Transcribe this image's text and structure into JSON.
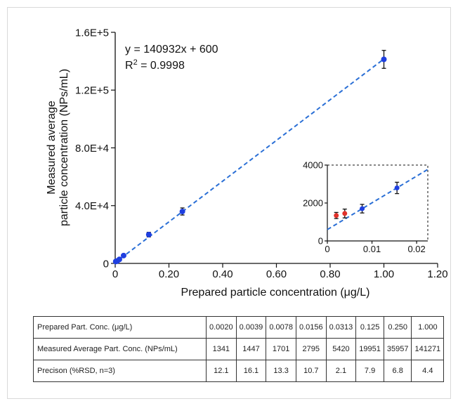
{
  "chart_data": [
    {
      "type": "scatter",
      "xlabel": "Prepared particle concentration (μg/L)",
      "ylabel_line1": "Measured average",
      "ylabel_line2": "particle concentration (NPs/mL)",
      "xlim": [
        0,
        1.2
      ],
      "ylim": [
        0,
        160000
      ],
      "x_ticks": [
        0,
        0.2,
        0.4,
        0.6,
        0.8,
        1.0,
        1.2
      ],
      "x_tick_labels": [
        "0",
        "0.20",
        "0.40",
        "0.60",
        "0.80",
        "1.00",
        "1.20"
      ],
      "y_ticks": [
        0,
        40000,
        80000,
        120000,
        160000
      ],
      "y_tick_labels": [
        "0",
        "4.0E+4",
        "8.0E+4",
        "1.2E+5",
        "1.6E+5"
      ],
      "equation": "y = 140932x + 600",
      "r2_label": "R",
      "r2_sup": "2",
      "r2_value": " = 0.9998",
      "fit": {
        "slope": 140932,
        "intercept": 600,
        "x_range": [
          0,
          1.0
        ]
      },
      "points": [
        {
          "x": 0.002,
          "y": 1341,
          "err": 162,
          "color": "#1f3fe0"
        },
        {
          "x": 0.0039,
          "y": 1447,
          "err": 232,
          "color": "#1f3fe0"
        },
        {
          "x": 0.0078,
          "y": 1701,
          "err": 226,
          "color": "#1f3fe0"
        },
        {
          "x": 0.0156,
          "y": 2795,
          "err": 299,
          "color": "#1f3fe0"
        },
        {
          "x": 0.0313,
          "y": 5420,
          "err": 114,
          "color": "#1f3fe0"
        },
        {
          "x": 0.125,
          "y": 19951,
          "err": 1576,
          "color": "#1f3fe0"
        },
        {
          "x": 0.25,
          "y": 35957,
          "err": 2445,
          "color": "#1f3fe0"
        },
        {
          "x": 1.0,
          "y": 141271,
          "err": 6216,
          "color": "#1f3fe0"
        }
      ],
      "fit_color": "#2a6fd6",
      "grid": false
    },
    {
      "type": "scatter",
      "role": "inset",
      "xlim": [
        0,
        0.0225
      ],
      "ylim": [
        0,
        4000
      ],
      "x_ticks": [
        0,
        0.01,
        0.02
      ],
      "x_tick_labels": [
        "0",
        "0.01",
        "0.02"
      ],
      "y_ticks": [
        0,
        2000,
        4000
      ],
      "y_tick_labels": [
        "0",
        "2000",
        "4000"
      ],
      "fit": {
        "slope": 140932,
        "intercept": 600,
        "x_range": [
          0,
          0.0225
        ]
      },
      "points": [
        {
          "x": 0.002,
          "y": 1341,
          "err": 162,
          "color": "#e0312a"
        },
        {
          "x": 0.0039,
          "y": 1447,
          "err": 232,
          "color": "#e0312a"
        },
        {
          "x": 0.0078,
          "y": 1701,
          "err": 226,
          "color": "#1f3fe0"
        },
        {
          "x": 0.0156,
          "y": 2795,
          "err": 299,
          "color": "#1f3fe0"
        }
      ]
    }
  ],
  "table": {
    "rows": [
      {
        "label": "Prepared Part. Conc. (μg/L)",
        "values": [
          "0.0020",
          "0.0039",
          "0.0078",
          "0.0156",
          "0.0313",
          "0.125",
          "0.250",
          "1.000"
        ]
      },
      {
        "label": "Measured Average Part. Conc. (NPs/mL)",
        "values": [
          "1341",
          "1447",
          "1701",
          "2795",
          "5420",
          "19951",
          "35957",
          "141271"
        ]
      },
      {
        "label": "Precison (%RSD, n=3)",
        "values": [
          "12.1",
          "16.1",
          "13.3",
          "10.7",
          "2.1",
          "7.9",
          "6.8",
          "4.4"
        ]
      }
    ]
  }
}
